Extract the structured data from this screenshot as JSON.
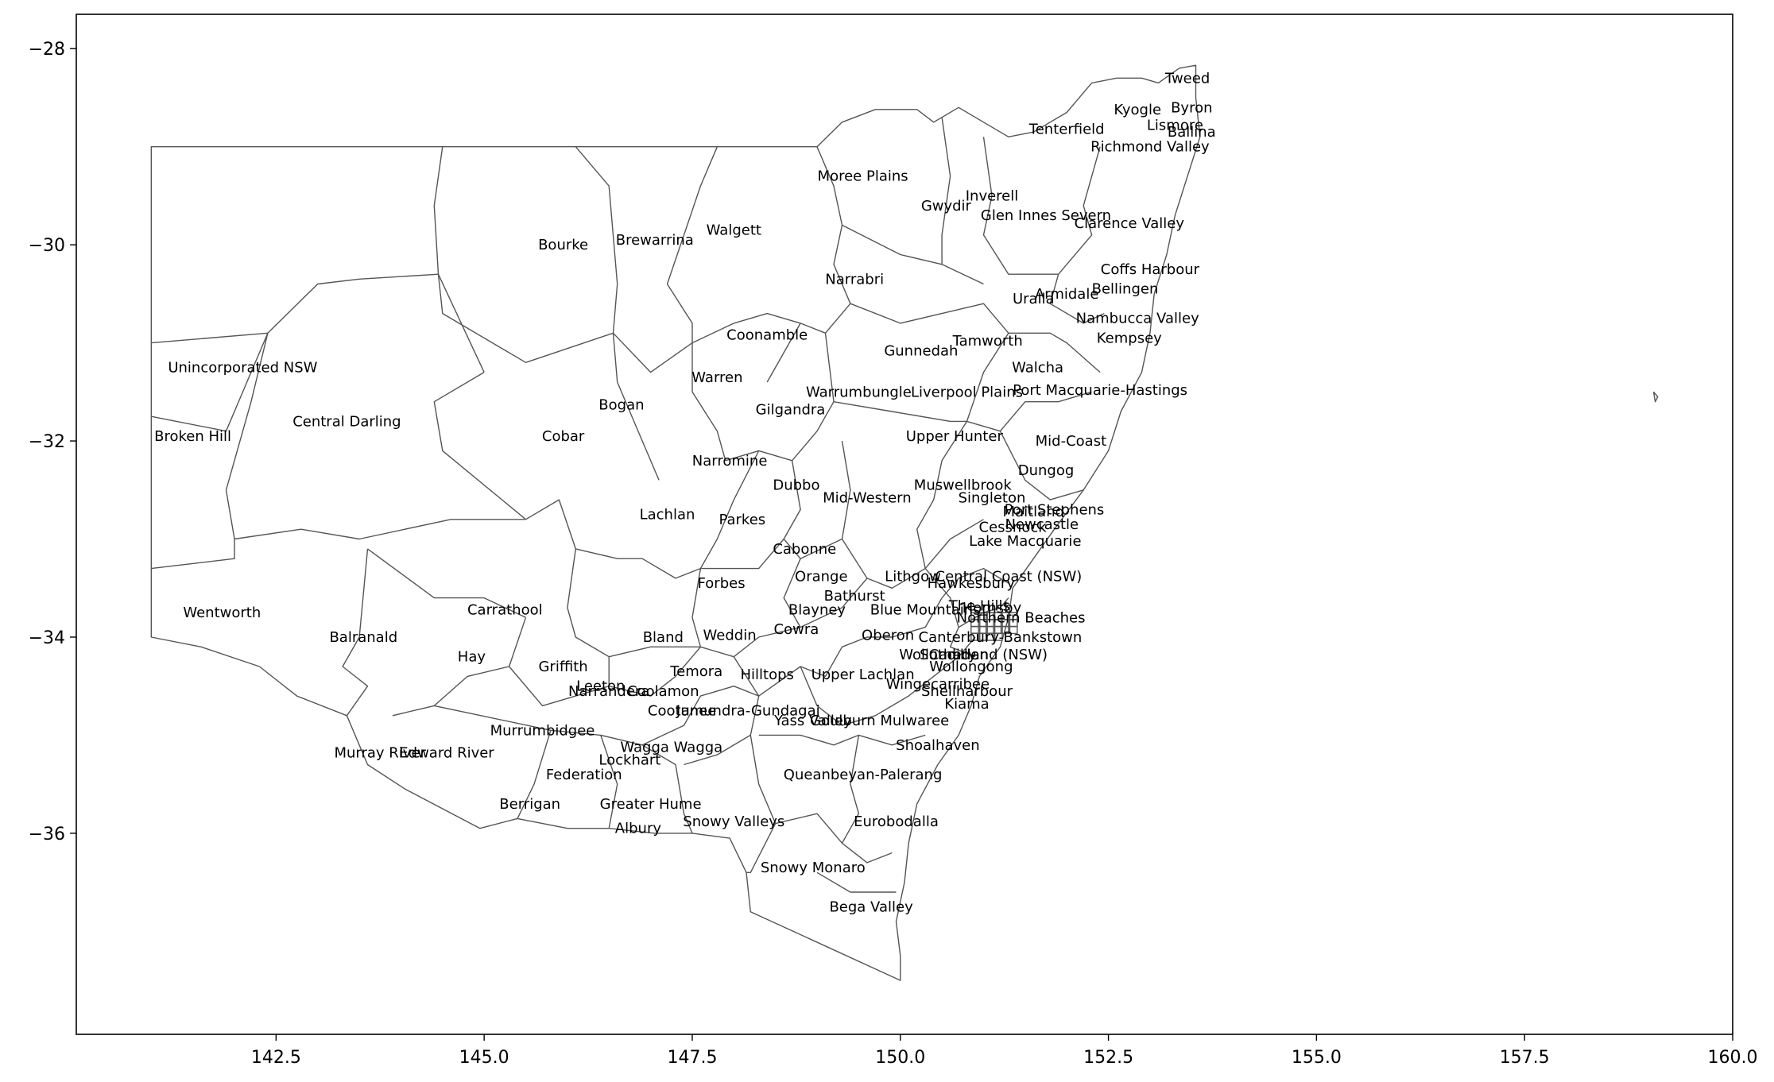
{
  "chart_data": {
    "type": "map",
    "title": "",
    "xlabel": "",
    "ylabel": "",
    "xlim": [
      140.1,
      160.0
    ],
    "ylim": [
      -38.05,
      -27.65
    ],
    "x_ticks": [
      142.5,
      145.0,
      147.5,
      150.0,
      152.5,
      155.0,
      157.5,
      160.0
    ],
    "x_tick_labels": [
      "142.5",
      "145.0",
      "147.5",
      "150.0",
      "152.5",
      "155.0",
      "157.5",
      "160.0"
    ],
    "y_ticks": [
      -28,
      -30,
      -32,
      -34,
      -36
    ],
    "y_tick_labels": [
      "−28",
      "−30",
      "−32",
      "−34",
      "−36"
    ],
    "boundary_color": "#555555",
    "fill_color": "#ffffff",
    "labels": [
      {
        "name": "Tweed",
        "lon": 153.45,
        "lat": -28.3
      },
      {
        "name": "Byron",
        "lon": 153.5,
        "lat": -28.6
      },
      {
        "name": "Kyogle",
        "lon": 152.85,
        "lat": -28.62
      },
      {
        "name": "Lismore",
        "lon": 153.3,
        "lat": -28.78
      },
      {
        "name": "Tenterfield",
        "lon": 152.0,
        "lat": -28.82
      },
      {
        "name": "Ballina",
        "lon": 153.5,
        "lat": -28.85
      },
      {
        "name": "Richmond Valley",
        "lon": 153.0,
        "lat": -29.0
      },
      {
        "name": "Moree Plains",
        "lon": 149.55,
        "lat": -29.3
      },
      {
        "name": "Inverell",
        "lon": 151.1,
        "lat": -29.5
      },
      {
        "name": "Gwydir",
        "lon": 150.55,
        "lat": -29.6
      },
      {
        "name": "Glen Innes Severn",
        "lon": 151.75,
        "lat": -29.7
      },
      {
        "name": "Clarence Valley",
        "lon": 152.75,
        "lat": -29.78
      },
      {
        "name": "Walgett",
        "lon": 148.0,
        "lat": -29.85
      },
      {
        "name": "Bourke",
        "lon": 145.95,
        "lat": -30.0
      },
      {
        "name": "Brewarrina",
        "lon": 147.05,
        "lat": -29.95
      },
      {
        "name": "Coffs Harbour",
        "lon": 153.0,
        "lat": -30.25
      },
      {
        "name": "Narrabri",
        "lon": 149.45,
        "lat": -30.35
      },
      {
        "name": "Bellingen",
        "lon": 152.7,
        "lat": -30.45
      },
      {
        "name": "Armidale",
        "lon": 152.0,
        "lat": -30.5
      },
      {
        "name": "Uralla",
        "lon": 151.6,
        "lat": -30.55
      },
      {
        "name": "Nambucca Valley",
        "lon": 152.85,
        "lat": -30.75
      },
      {
        "name": "Coonamble",
        "lon": 148.4,
        "lat": -30.92
      },
      {
        "name": "Kempsey",
        "lon": 152.75,
        "lat": -30.95
      },
      {
        "name": "Tamworth",
        "lon": 151.05,
        "lat": -30.98
      },
      {
        "name": "Gunnedah",
        "lon": 150.25,
        "lat": -31.08
      },
      {
        "name": "Unincorporated NSW",
        "lon": 142.1,
        "lat": -31.25
      },
      {
        "name": "Walcha",
        "lon": 151.65,
        "lat": -31.25
      },
      {
        "name": "Warren",
        "lon": 147.8,
        "lat": -31.35
      },
      {
        "name": "Port Macquarie-Hastings",
        "lon": 152.4,
        "lat": -31.48
      },
      {
        "name": "Warrumbungle",
        "lon": 149.5,
        "lat": -31.5
      },
      {
        "name": "Liverpool Plains",
        "lon": 150.8,
        "lat": -31.5
      },
      {
        "name": "Bogan",
        "lon": 146.65,
        "lat": -31.63
      },
      {
        "name": "Gilgandra",
        "lon": 148.68,
        "lat": -31.68
      },
      {
        "name": "Central Darling",
        "lon": 143.35,
        "lat": -31.8
      },
      {
        "name": "Broken Hill",
        "lon": 141.5,
        "lat": -31.95
      },
      {
        "name": "Cobar",
        "lon": 145.95,
        "lat": -31.95
      },
      {
        "name": "Upper Hunter",
        "lon": 150.65,
        "lat": -31.95
      },
      {
        "name": "Mid-Coast",
        "lon": 152.05,
        "lat": -32.0
      },
      {
        "name": "Narromine",
        "lon": 147.95,
        "lat": -32.2
      },
      {
        "name": "Dungog",
        "lon": 151.75,
        "lat": -32.3
      },
      {
        "name": "Dubbo",
        "lon": 148.75,
        "lat": -32.45
      },
      {
        "name": "Muswellbrook",
        "lon": 150.75,
        "lat": -32.45
      },
      {
        "name": "Mid-Western",
        "lon": 149.6,
        "lat": -32.58
      },
      {
        "name": "Singleton",
        "lon": 151.1,
        "lat": -32.58
      },
      {
        "name": "Port Stephens",
        "lon": 151.85,
        "lat": -32.7
      },
      {
        "name": "Maitland",
        "lon": 151.6,
        "lat": -32.72
      },
      {
        "name": "Lachlan",
        "lon": 147.2,
        "lat": -32.75
      },
      {
        "name": "Parkes",
        "lon": 148.1,
        "lat": -32.8
      },
      {
        "name": "Newcastle",
        "lon": 151.7,
        "lat": -32.85
      },
      {
        "name": "Cessnock",
        "lon": 151.35,
        "lat": -32.88
      },
      {
        "name": "Lake Macquarie",
        "lon": 151.5,
        "lat": -33.02
      },
      {
        "name": "Cabonne",
        "lon": 148.85,
        "lat": -33.1
      },
      {
        "name": "Lithgow",
        "lon": 150.15,
        "lat": -33.38
      },
      {
        "name": "Central Coast (NSW)",
        "lon": 151.3,
        "lat": -33.38
      },
      {
        "name": "Orange",
        "lon": 149.05,
        "lat": -33.38
      },
      {
        "name": "Forbes",
        "lon": 147.85,
        "lat": -33.45
      },
      {
        "name": "Hawkesbury",
        "lon": 150.85,
        "lat": -33.45
      },
      {
        "name": "Bathurst",
        "lon": 149.45,
        "lat": -33.58
      },
      {
        "name": "The Hills",
        "lon": 150.95,
        "lat": -33.68
      },
      {
        "name": "Hornsby",
        "lon": 151.1,
        "lat": -33.7
      },
      {
        "name": "Blayney",
        "lon": 149.0,
        "lat": -33.72
      },
      {
        "name": "Blue Mountains",
        "lon": 150.3,
        "lat": -33.72
      },
      {
        "name": "Carrathool",
        "lon": 145.25,
        "lat": -33.72
      },
      {
        "name": "Wentworth",
        "lon": 141.85,
        "lat": -33.75
      },
      {
        "name": "Northern Beaches",
        "lon": 151.45,
        "lat": -33.8
      },
      {
        "name": "Cowra",
        "lon": 148.75,
        "lat": -33.92
      },
      {
        "name": "Weddin",
        "lon": 147.95,
        "lat": -33.98
      },
      {
        "name": "Oberon",
        "lon": 149.85,
        "lat": -33.98
      },
      {
        "name": "Bland",
        "lon": 147.15,
        "lat": -34.0
      },
      {
        "name": "Canterbury-Bankstown",
        "lon": 151.2,
        "lat": -34.0
      },
      {
        "name": "Balranald",
        "lon": 143.55,
        "lat": -34.0
      },
      {
        "name": "Wollondilly",
        "lon": 150.45,
        "lat": -34.18
      },
      {
        "name": "Camden",
        "lon": 150.7,
        "lat": -34.18
      },
      {
        "name": "Sutherland (NSW)",
        "lon": 151.0,
        "lat": -34.18
      },
      {
        "name": "Hay",
        "lon": 144.85,
        "lat": -34.2
      },
      {
        "name": "Griffith",
        "lon": 145.95,
        "lat": -34.3
      },
      {
        "name": "Temora",
        "lon": 147.55,
        "lat": -34.35
      },
      {
        "name": "Wollongong",
        "lon": 150.85,
        "lat": -34.3
      },
      {
        "name": "Hilltops",
        "lon": 148.4,
        "lat": -34.38
      },
      {
        "name": "Upper Lachlan",
        "lon": 149.55,
        "lat": -34.38
      },
      {
        "name": "Wingecarribee",
        "lon": 150.45,
        "lat": -34.48
      },
      {
        "name": "Leeton",
        "lon": 146.4,
        "lat": -34.5
      },
      {
        "name": "Narrandera",
        "lon": 146.5,
        "lat": -34.55
      },
      {
        "name": "Coolamon",
        "lon": 147.15,
        "lat": -34.55
      },
      {
        "name": "Shellharbour",
        "lon": 150.8,
        "lat": -34.55
      },
      {
        "name": "Kiama",
        "lon": 150.8,
        "lat": -34.68
      },
      {
        "name": "Cootamundra-Gundagai",
        "lon": 148.0,
        "lat": -34.75
      },
      {
        "name": "Junee",
        "lon": 147.55,
        "lat": -34.75
      },
      {
        "name": "Yass Valley",
        "lon": 148.95,
        "lat": -34.85
      },
      {
        "name": "Goulburn Mulwaree",
        "lon": 149.75,
        "lat": -34.85
      },
      {
        "name": "Murrumbidgee",
        "lon": 145.7,
        "lat": -34.95
      },
      {
        "name": "Shoalhaven",
        "lon": 150.45,
        "lat": -35.1
      },
      {
        "name": "Wagga Wagga",
        "lon": 147.25,
        "lat": -35.12
      },
      {
        "name": "Murray River",
        "lon": 143.75,
        "lat": -35.18
      },
      {
        "name": "Edward River",
        "lon": 144.55,
        "lat": -35.18
      },
      {
        "name": "Lockhart",
        "lon": 146.75,
        "lat": -35.25
      },
      {
        "name": "Federation",
        "lon": 146.2,
        "lat": -35.4
      },
      {
        "name": "Queanbeyan-Palerang",
        "lon": 149.55,
        "lat": -35.4
      },
      {
        "name": "Berrigan",
        "lon": 145.55,
        "lat": -35.7
      },
      {
        "name": "Greater Hume",
        "lon": 147.0,
        "lat": -35.7
      },
      {
        "name": "Snowy Valleys",
        "lon": 148.0,
        "lat": -35.88
      },
      {
        "name": "Eurobodalla",
        "lon": 149.95,
        "lat": -35.88
      },
      {
        "name": "Albury",
        "lon": 146.85,
        "lat": -35.95
      },
      {
        "name": "Snowy Monaro",
        "lon": 148.95,
        "lat": -36.35
      },
      {
        "name": "Bega Valley",
        "lon": 149.65,
        "lat": -36.75
      }
    ]
  }
}
